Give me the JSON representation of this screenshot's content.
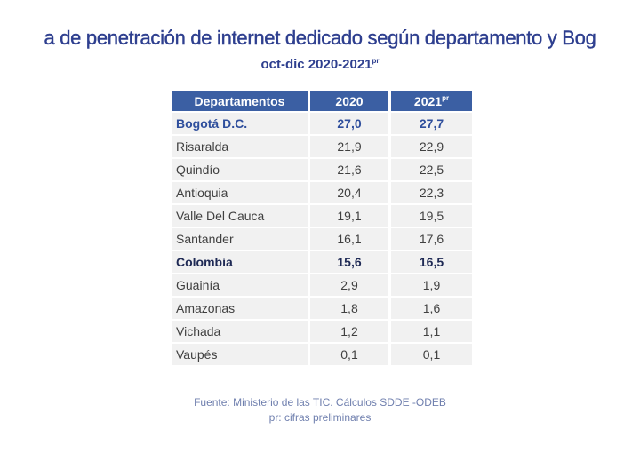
{
  "title": "a de penetración de internet dedicado según departamento y Bog",
  "subtitle": "oct-dic 2020-2021",
  "subtitle_sup": "pr",
  "table": {
    "headers": [
      "Departamentos",
      "2020",
      "2021"
    ],
    "header_sup": "pr",
    "rows": [
      {
        "name": "Bogotá D.C.",
        "v2020": "27,0",
        "v2021": "27,7",
        "style": "hl-blue"
      },
      {
        "name": "Risaralda",
        "v2020": "21,9",
        "v2021": "22,9",
        "style": ""
      },
      {
        "name": "Quindío",
        "v2020": "21,6",
        "v2021": "22,5",
        "style": ""
      },
      {
        "name": "Antioquia",
        "v2020": "20,4",
        "v2021": "22,3",
        "style": ""
      },
      {
        "name": "Valle Del Cauca",
        "v2020": "19,1",
        "v2021": "19,5",
        "style": ""
      },
      {
        "name": "Santander",
        "v2020": "16,1",
        "v2021": "17,6",
        "style": ""
      },
      {
        "name": "Colombia",
        "v2020": "15,6",
        "v2021": "16,5",
        "style": "hl-dark"
      },
      {
        "name": "Guainía",
        "v2020": "2,9",
        "v2021": "1,9",
        "style": ""
      },
      {
        "name": "Amazonas",
        "v2020": "1,8",
        "v2021": "1,6",
        "style": ""
      },
      {
        "name": "Vichada",
        "v2020": "1,2",
        "v2021": "1,1",
        "style": ""
      },
      {
        "name": "Vaupés",
        "v2020": "0,1",
        "v2021": "0,1",
        "style": ""
      }
    ]
  },
  "source": {
    "line1": "Fuente: Ministerio de las TIC. Cálculos SDDE -ODEB",
    "line2": "pr: cifras preliminares"
  },
  "colors": {
    "header": "#3b5fa3",
    "title": "#2e3f8f",
    "row": "#f1f1f1"
  }
}
